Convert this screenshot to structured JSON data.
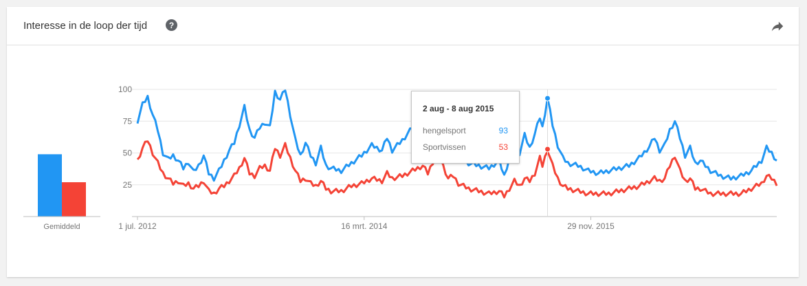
{
  "card": {
    "title": "Interesse in de loop der tijd",
    "help_icon": "question-circle-icon",
    "share_icon": "share-arrow-icon"
  },
  "colors": {
    "series_1": "#2196f3",
    "series_2": "#f44336",
    "grid": "#e6e6e6",
    "axis_text": "#757575"
  },
  "average": {
    "label": "Gemiddeld",
    "values": [
      49,
      27
    ]
  },
  "tooltip": {
    "date": "2 aug - 8 aug 2015",
    "rows": [
      {
        "name": "hengelsport",
        "value": "93"
      },
      {
        "name": "Sportvissen",
        "value": "53"
      }
    ]
  },
  "chart_data": {
    "type": "line",
    "title": "Interesse in de loop der tijd",
    "xlabel": "",
    "ylabel": "",
    "ylim": [
      0,
      100
    ],
    "yticks": [
      25,
      50,
      75,
      100
    ],
    "grid": true,
    "legend": "none",
    "x_range": [
      "2012-07-01",
      "2017-04-23"
    ],
    "x_interval": "week",
    "xtick_labels": [
      {
        "date": "2012-07-01",
        "label": "1 jul. 2012"
      },
      {
        "date": "2014-03-16",
        "label": "16 mrt. 2014"
      },
      {
        "date": "2015-11-29",
        "label": "29 nov. 2015"
      }
    ],
    "highlight": {
      "date": "2015-08-02",
      "label": "2 aug - 8 aug 2015"
    },
    "anchors_note": "weekly values approximated by interpolation between the listed [date, value] points",
    "series": [
      {
        "name": "hengelsport",
        "color": "#2196f3",
        "points": [
          [
            "2012-07-01",
            75
          ],
          [
            "2012-07-15",
            88
          ],
          [
            "2012-07-29",
            94
          ],
          [
            "2012-08-12",
            80
          ],
          [
            "2012-08-26",
            68
          ],
          [
            "2012-09-09",
            50
          ],
          [
            "2012-09-23",
            45
          ],
          [
            "2012-10-07",
            48
          ],
          [
            "2012-10-21",
            44
          ],
          [
            "2012-11-04",
            38
          ],
          [
            "2012-11-18",
            43
          ],
          [
            "2012-12-02",
            35
          ],
          [
            "2012-12-16",
            40
          ],
          [
            "2012-12-30",
            48
          ],
          [
            "2013-01-13",
            34
          ],
          [
            "2013-01-27",
            30
          ],
          [
            "2013-02-10",
            36
          ],
          [
            "2013-02-24",
            44
          ],
          [
            "2013-03-10",
            52
          ],
          [
            "2013-03-24",
            58
          ],
          [
            "2013-04-07",
            72
          ],
          [
            "2013-04-21",
            86
          ],
          [
            "2013-05-05",
            68
          ],
          [
            "2013-05-19",
            62
          ],
          [
            "2013-06-02",
            70
          ],
          [
            "2013-06-16",
            74
          ],
          [
            "2013-06-30",
            70
          ],
          [
            "2013-07-14",
            98
          ],
          [
            "2013-07-28",
            92
          ],
          [
            "2013-08-11",
            100
          ],
          [
            "2013-08-25",
            80
          ],
          [
            "2013-09-08",
            60
          ],
          [
            "2013-09-22",
            48
          ],
          [
            "2013-10-06",
            58
          ],
          [
            "2013-10-20",
            48
          ],
          [
            "2013-11-03",
            42
          ],
          [
            "2013-11-17",
            54
          ],
          [
            "2013-12-01",
            40
          ],
          [
            "2013-12-15",
            38
          ],
          [
            "2014-01-12",
            36
          ],
          [
            "2014-02-09",
            42
          ],
          [
            "2014-03-09",
            48
          ],
          [
            "2014-04-06",
            56
          ],
          [
            "2014-05-04",
            52
          ],
          [
            "2014-05-18",
            62
          ],
          [
            "2014-06-01",
            52
          ],
          [
            "2014-06-29",
            60
          ],
          [
            "2014-07-27",
            70
          ],
          [
            "2014-08-24",
            74
          ],
          [
            "2014-09-07",
            64
          ],
          [
            "2014-10-05",
            92
          ],
          [
            "2014-10-19",
            70
          ],
          [
            "2014-11-02",
            50
          ],
          [
            "2014-11-16",
            62
          ],
          [
            "2014-11-30",
            46
          ],
          [
            "2014-12-28",
            42
          ],
          [
            "2015-01-25",
            40
          ],
          [
            "2015-02-22",
            38
          ],
          [
            "2015-03-22",
            44
          ],
          [
            "2015-04-05",
            32
          ],
          [
            "2015-04-19",
            46
          ],
          [
            "2015-05-03",
            60
          ],
          [
            "2015-05-17",
            50
          ],
          [
            "2015-05-31",
            64
          ],
          [
            "2015-06-14",
            54
          ],
          [
            "2015-06-28",
            65
          ],
          [
            "2015-07-12",
            78
          ],
          [
            "2015-07-19",
            70
          ],
          [
            "2015-08-02",
            93
          ],
          [
            "2015-08-16",
            72
          ],
          [
            "2015-08-30",
            56
          ],
          [
            "2015-09-13",
            46
          ],
          [
            "2015-09-27",
            42
          ],
          [
            "2015-10-25",
            40
          ],
          [
            "2015-11-22",
            36
          ],
          [
            "2015-12-20",
            34
          ],
          [
            "2016-01-17",
            36
          ],
          [
            "2016-02-14",
            38
          ],
          [
            "2016-03-13",
            40
          ],
          [
            "2016-04-10",
            46
          ],
          [
            "2016-05-08",
            55
          ],
          [
            "2016-05-22",
            62
          ],
          [
            "2016-06-05",
            52
          ],
          [
            "2016-06-19",
            56
          ],
          [
            "2016-07-03",
            68
          ],
          [
            "2016-07-17",
            75
          ],
          [
            "2016-07-31",
            62
          ],
          [
            "2016-08-14",
            48
          ],
          [
            "2016-08-28",
            54
          ],
          [
            "2016-09-11",
            42
          ],
          [
            "2016-09-25",
            44
          ],
          [
            "2016-10-09",
            40
          ],
          [
            "2016-10-23",
            36
          ],
          [
            "2016-11-20",
            32
          ],
          [
            "2016-12-18",
            30
          ],
          [
            "2017-01-15",
            32
          ],
          [
            "2017-02-12",
            36
          ],
          [
            "2017-03-12",
            44
          ],
          [
            "2017-03-26",
            54
          ],
          [
            "2017-04-09",
            50
          ],
          [
            "2017-04-23",
            44
          ]
        ]
      },
      {
        "name": "Sportvissen",
        "color": "#f44336",
        "points": [
          [
            "2012-07-01",
            44
          ],
          [
            "2012-07-15",
            54
          ],
          [
            "2012-07-29",
            60
          ],
          [
            "2012-08-12",
            50
          ],
          [
            "2012-08-26",
            42
          ],
          [
            "2012-09-09",
            34
          ],
          [
            "2012-09-23",
            30
          ],
          [
            "2012-10-07",
            26
          ],
          [
            "2012-10-21",
            28
          ],
          [
            "2012-11-04",
            24
          ],
          [
            "2012-11-18",
            26
          ],
          [
            "2012-12-02",
            22
          ],
          [
            "2012-12-16",
            24
          ],
          [
            "2012-12-30",
            28
          ],
          [
            "2013-01-13",
            20
          ],
          [
            "2013-01-27",
            18
          ],
          [
            "2013-02-10",
            22
          ],
          [
            "2013-02-24",
            24
          ],
          [
            "2013-03-10",
            28
          ],
          [
            "2013-03-24",
            32
          ],
          [
            "2013-04-07",
            38
          ],
          [
            "2013-04-21",
            46
          ],
          [
            "2013-05-05",
            34
          ],
          [
            "2013-05-19",
            32
          ],
          [
            "2013-06-02",
            38
          ],
          [
            "2013-06-16",
            40
          ],
          [
            "2013-06-30",
            36
          ],
          [
            "2013-07-14",
            54
          ],
          [
            "2013-07-28",
            48
          ],
          [
            "2013-08-11",
            56
          ],
          [
            "2013-08-25",
            46
          ],
          [
            "2013-09-08",
            36
          ],
          [
            "2013-09-22",
            28
          ],
          [
            "2013-10-06",
            30
          ],
          [
            "2013-10-20",
            26
          ],
          [
            "2013-11-03",
            24
          ],
          [
            "2013-11-17",
            28
          ],
          [
            "2013-12-01",
            22
          ],
          [
            "2013-12-15",
            20
          ],
          [
            "2014-01-12",
            20
          ],
          [
            "2014-02-09",
            24
          ],
          [
            "2014-03-09",
            26
          ],
          [
            "2014-04-06",
            30
          ],
          [
            "2014-05-04",
            28
          ],
          [
            "2014-05-18",
            34
          ],
          [
            "2014-06-01",
            30
          ],
          [
            "2014-06-29",
            32
          ],
          [
            "2014-07-27",
            36
          ],
          [
            "2014-08-24",
            40
          ],
          [
            "2014-09-07",
            34
          ],
          [
            "2014-10-05",
            52
          ],
          [
            "2014-10-19",
            40
          ],
          [
            "2014-11-02",
            30
          ],
          [
            "2014-11-16",
            32
          ],
          [
            "2014-11-30",
            26
          ],
          [
            "2014-12-28",
            22
          ],
          [
            "2015-01-25",
            20
          ],
          [
            "2015-02-22",
            18
          ],
          [
            "2015-03-22",
            20
          ],
          [
            "2015-04-05",
            16
          ],
          [
            "2015-04-19",
            22
          ],
          [
            "2015-05-03",
            28
          ],
          [
            "2015-05-17",
            24
          ],
          [
            "2015-05-31",
            30
          ],
          [
            "2015-06-14",
            28
          ],
          [
            "2015-06-28",
            34
          ],
          [
            "2015-07-12",
            46
          ],
          [
            "2015-07-19",
            40
          ],
          [
            "2015-08-02",
            53
          ],
          [
            "2015-08-16",
            40
          ],
          [
            "2015-08-30",
            30
          ],
          [
            "2015-09-13",
            24
          ],
          [
            "2015-09-27",
            22
          ],
          [
            "2015-10-25",
            20
          ],
          [
            "2015-11-22",
            18
          ],
          [
            "2015-12-20",
            18
          ],
          [
            "2016-01-17",
            18
          ],
          [
            "2016-02-14",
            20
          ],
          [
            "2016-03-13",
            22
          ],
          [
            "2016-04-10",
            24
          ],
          [
            "2016-05-08",
            28
          ],
          [
            "2016-05-22",
            30
          ],
          [
            "2016-06-05",
            28
          ],
          [
            "2016-06-19",
            30
          ],
          [
            "2016-07-03",
            40
          ],
          [
            "2016-07-17",
            48
          ],
          [
            "2016-07-31",
            36
          ],
          [
            "2016-08-14",
            28
          ],
          [
            "2016-08-28",
            30
          ],
          [
            "2016-09-11",
            22
          ],
          [
            "2016-09-25",
            22
          ],
          [
            "2016-10-09",
            20
          ],
          [
            "2016-10-23",
            18
          ],
          [
            "2016-11-20",
            18
          ],
          [
            "2016-12-18",
            18
          ],
          [
            "2017-01-15",
            18
          ],
          [
            "2017-02-12",
            22
          ],
          [
            "2017-03-12",
            26
          ],
          [
            "2017-03-26",
            32
          ],
          [
            "2017-04-09",
            30
          ],
          [
            "2017-04-23",
            26
          ]
        ]
      }
    ]
  }
}
